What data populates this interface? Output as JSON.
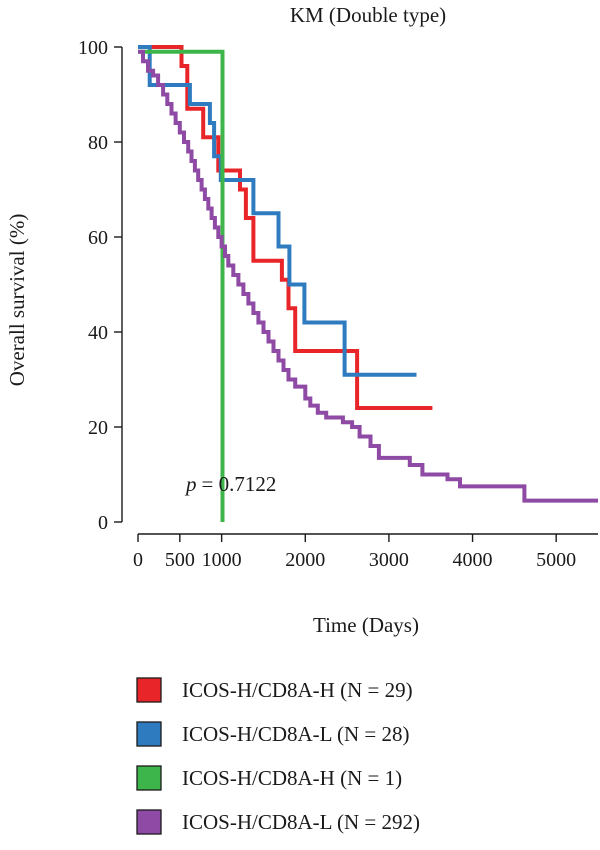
{
  "chart_data": {
    "type": "line",
    "title": "KM (Double type)",
    "xlabel": "Time (Days)",
    "ylabel": "Overall survival (%)",
    "xlim": [
      0,
      5500
    ],
    "ylim": [
      0,
      100
    ],
    "x_ticks": [
      0,
      500,
      1000,
      2000,
      3000,
      4000,
      5000
    ],
    "x_tick_labels": [
      "0",
      "500",
      "1000",
      "2000",
      "3000",
      "4000",
      "5000"
    ],
    "y_ticks": [
      0,
      20,
      40,
      60,
      80,
      100
    ],
    "y_tick_labels": [
      "0",
      "20",
      "40",
      "60",
      "80",
      "100"
    ],
    "annotation": {
      "p_label": "p",
      "p_value": "= 0.7122"
    },
    "legend_position": "bottom",
    "grid": false,
    "series": [
      {
        "name": "ICOS-H/CD8A-H (N = 29)",
        "color": "#e8262a",
        "steps": [
          [
            0,
            100
          ],
          [
            520,
            100
          ],
          [
            520,
            96
          ],
          [
            590,
            96
          ],
          [
            590,
            87
          ],
          [
            780,
            87
          ],
          [
            780,
            81
          ],
          [
            960,
            81
          ],
          [
            960,
            74
          ],
          [
            1220,
            74
          ],
          [
            1220,
            70
          ],
          [
            1290,
            70
          ],
          [
            1290,
            64
          ],
          [
            1380,
            64
          ],
          [
            1380,
            55
          ],
          [
            1720,
            55
          ],
          [
            1720,
            51
          ],
          [
            1800,
            51
          ],
          [
            1800,
            45
          ],
          [
            1880,
            45
          ],
          [
            1880,
            36
          ],
          [
            2620,
            36
          ],
          [
            2620,
            24
          ],
          [
            3520,
            24
          ]
        ]
      },
      {
        "name": "ICOS-H/CD8A-L (N = 28)",
        "color": "#2f7bbf",
        "steps": [
          [
            0,
            100
          ],
          [
            140,
            100
          ],
          [
            140,
            92
          ],
          [
            620,
            92
          ],
          [
            620,
            88
          ],
          [
            860,
            88
          ],
          [
            860,
            84
          ],
          [
            910,
            84
          ],
          [
            910,
            77
          ],
          [
            990,
            77
          ],
          [
            990,
            72
          ],
          [
            1380,
            72
          ],
          [
            1380,
            65
          ],
          [
            1680,
            65
          ],
          [
            1680,
            58
          ],
          [
            1810,
            58
          ],
          [
            1810,
            50
          ],
          [
            1990,
            50
          ],
          [
            1990,
            42
          ],
          [
            2470,
            42
          ],
          [
            2470,
            31
          ],
          [
            3330,
            31
          ]
        ]
      },
      {
        "name": "ICOS-H/CD8A-H (N = 1)",
        "color": "#3db54a",
        "steps": [
          [
            0,
            99
          ],
          [
            1010,
            99
          ],
          [
            1010,
            0
          ]
        ]
      },
      {
        "name": "ICOS-H/CD8A-L (N = 292)",
        "color": "#8e4aa4",
        "steps": [
          [
            0,
            99
          ],
          [
            60,
            99
          ],
          [
            60,
            97
          ],
          [
            120,
            97
          ],
          [
            120,
            95
          ],
          [
            180,
            95
          ],
          [
            180,
            94
          ],
          [
            240,
            94
          ],
          [
            240,
            92
          ],
          [
            300,
            92
          ],
          [
            300,
            90
          ],
          [
            350,
            90
          ],
          [
            350,
            88
          ],
          [
            400,
            88
          ],
          [
            400,
            86
          ],
          [
            450,
            86
          ],
          [
            450,
            84
          ],
          [
            500,
            84
          ],
          [
            500,
            82
          ],
          [
            550,
            82
          ],
          [
            550,
            80
          ],
          [
            600,
            80
          ],
          [
            600,
            78
          ],
          [
            640,
            78
          ],
          [
            640,
            76
          ],
          [
            680,
            76
          ],
          [
            680,
            74
          ],
          [
            720,
            74
          ],
          [
            720,
            72
          ],
          [
            760,
            72
          ],
          [
            760,
            70
          ],
          [
            800,
            70
          ],
          [
            800,
            68
          ],
          [
            840,
            68
          ],
          [
            840,
            66
          ],
          [
            880,
            66
          ],
          [
            880,
            64
          ],
          [
            920,
            64
          ],
          [
            920,
            62
          ],
          [
            960,
            62
          ],
          [
            960,
            60
          ],
          [
            1000,
            60
          ],
          [
            1000,
            58
          ],
          [
            1040,
            58
          ],
          [
            1040,
            56
          ],
          [
            1080,
            56
          ],
          [
            1080,
            54
          ],
          [
            1140,
            54
          ],
          [
            1140,
            52
          ],
          [
            1200,
            52
          ],
          [
            1200,
            50
          ],
          [
            1260,
            50
          ],
          [
            1260,
            48
          ],
          [
            1320,
            48
          ],
          [
            1320,
            46
          ],
          [
            1380,
            46
          ],
          [
            1380,
            44
          ],
          [
            1440,
            44
          ],
          [
            1440,
            42
          ],
          [
            1500,
            42
          ],
          [
            1500,
            40
          ],
          [
            1560,
            40
          ],
          [
            1560,
            38
          ],
          [
            1620,
            38
          ],
          [
            1620,
            36
          ],
          [
            1680,
            36
          ],
          [
            1680,
            34
          ],
          [
            1740,
            34
          ],
          [
            1740,
            32
          ],
          [
            1800,
            32
          ],
          [
            1800,
            30
          ],
          [
            1880,
            30
          ],
          [
            1880,
            28.5
          ],
          [
            2000,
            28.5
          ],
          [
            2000,
            26
          ],
          [
            2060,
            26
          ],
          [
            2060,
            24.5
          ],
          [
            2150,
            24.5
          ],
          [
            2150,
            23
          ],
          [
            2250,
            23
          ],
          [
            2250,
            22
          ],
          [
            2450,
            22
          ],
          [
            2450,
            21
          ],
          [
            2560,
            21
          ],
          [
            2560,
            20
          ],
          [
            2650,
            20
          ],
          [
            2650,
            18
          ],
          [
            2780,
            18
          ],
          [
            2780,
            16
          ],
          [
            2880,
            16
          ],
          [
            2880,
            13.5
          ],
          [
            3250,
            13.5
          ],
          [
            3250,
            12
          ],
          [
            3400,
            12
          ],
          [
            3400,
            10
          ],
          [
            3700,
            10
          ],
          [
            3700,
            9
          ],
          [
            3850,
            9
          ],
          [
            3850,
            7.5
          ],
          [
            4620,
            7.5
          ],
          [
            4620,
            4.5
          ],
          [
            5500,
            4.5
          ]
        ]
      }
    ]
  }
}
